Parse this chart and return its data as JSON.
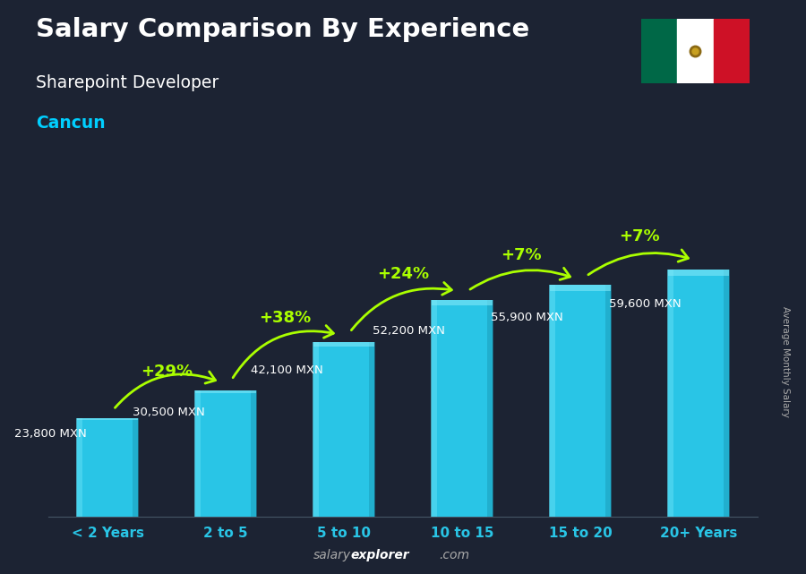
{
  "title": "Salary Comparison By Experience",
  "subtitle": "Sharepoint Developer",
  "city": "Cancun",
  "ylabel": "Average Monthly Salary",
  "xlabel_categories": [
    "< 2 Years",
    "2 to 5",
    "5 to 10",
    "10 to 15",
    "15 to 20",
    "20+ Years"
  ],
  "values": [
    23800,
    30500,
    42100,
    52200,
    55900,
    59600
  ],
  "labels": [
    "23,800 MXN",
    "30,500 MXN",
    "42,100 MXN",
    "52,200 MXN",
    "55,900 MXN",
    "59,600 MXN"
  ],
  "pct_changes": [
    "+29%",
    "+38%",
    "+24%",
    "+7%",
    "+7%"
  ],
  "bar_color": "#29c5e6",
  "bar_left_highlight": "#55d8f0",
  "bar_right_shadow": "#1a9ab8",
  "bar_top_highlight": "#80e8f8",
  "background_color": "#1c2333",
  "title_color": "#ffffff",
  "subtitle_color": "#ffffff",
  "city_color": "#00cfff",
  "label_color": "#ffffff",
  "pct_color": "#aaff00",
  "arrow_color": "#aaff00",
  "xtick_color": "#29c5e6",
  "footer_salary_color": "#aaaaaa",
  "footer_explorer_color": "#ffffff",
  "footer_com_color": "#aaaaaa",
  "ylabel_color": "#aaaaaa",
  "flag_green": "#006847",
  "flag_white": "#ffffff",
  "flag_red": "#ce1126",
  "ylim_max": 72000,
  "bar_width": 0.52
}
